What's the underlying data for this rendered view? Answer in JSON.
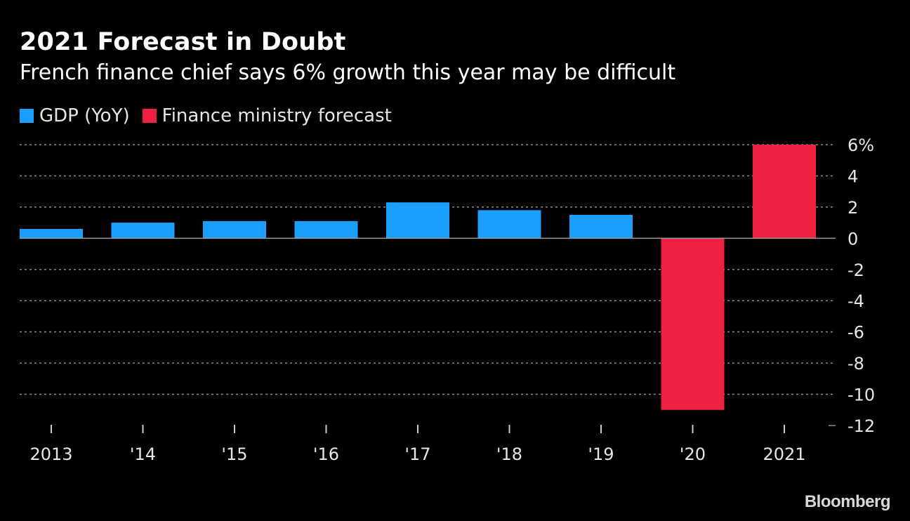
{
  "header": {
    "title": "2021 Forecast in Doubt",
    "subtitle": "French finance chief says 6% growth this year may be difficult"
  },
  "brand": "Bloomberg",
  "colors": {
    "background": "#000000",
    "gdp": "#1a9fff",
    "forecast": "#ef2142",
    "grid": "#8c8c8c",
    "zero_line": "#9a9a9a",
    "text": "#e6e6e6"
  },
  "chart_data": {
    "type": "bar",
    "title": "2021 Forecast in Doubt",
    "subtitle": "French finance chief says 6% growth this year may be difficult",
    "xlabel": "",
    "ylabel": "",
    "categories": [
      "2013",
      "'14",
      "'15",
      "'16",
      "'17",
      "'18",
      "'19",
      "'20",
      "2021"
    ],
    "series": [
      {
        "name": "GDP (YoY)",
        "color": "#1a9fff",
        "values": [
          0.6,
          1.0,
          1.1,
          1.1,
          2.3,
          1.8,
          1.5,
          null,
          null
        ]
      },
      {
        "name": "Finance ministry forecast",
        "color": "#ef2142",
        "values": [
          null,
          null,
          null,
          null,
          null,
          null,
          null,
          -11.0,
          6.0
        ]
      }
    ],
    "ylim": [
      -12,
      6
    ],
    "yticks": [
      6,
      4,
      2,
      0,
      -2,
      -4,
      -6,
      -8,
      -10,
      -12
    ],
    "ytick_labels": [
      "6%",
      "4",
      "2",
      "0",
      "-2",
      "-4",
      "-6",
      "-8",
      "-10",
      "-12"
    ],
    "y_axis_side": "right",
    "grid": true,
    "legend_position": "top-left"
  }
}
